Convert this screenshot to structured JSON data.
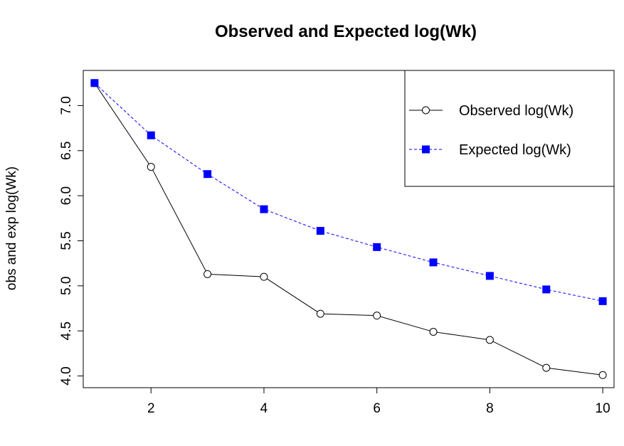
{
  "chart_data": {
    "type": "line",
    "title": "Observed and Expected log(Wk)",
    "xlabel": "",
    "ylabel": "obs and exp log(Wk)",
    "x": [
      1,
      2,
      3,
      4,
      5,
      6,
      7,
      8,
      9,
      10
    ],
    "xlim": [
      0.8,
      10.2
    ],
    "ylim": [
      3.87,
      7.39
    ],
    "xticks": [
      2,
      4,
      6,
      8,
      10
    ],
    "yticks": [
      "4.0",
      "4.5",
      "5.0",
      "5.5",
      "6.0",
      "6.5",
      "7.0"
    ],
    "grid": false,
    "legend_position": "top-right",
    "series": [
      {
        "name": "Observed log(Wk)",
        "values": [
          7.25,
          6.32,
          5.13,
          5.1,
          4.69,
          4.67,
          4.49,
          4.4,
          4.09,
          4.01
        ],
        "color": "#000000",
        "line_style": "solid",
        "marker": "open-circle"
      },
      {
        "name": "Expected log(Wk)",
        "values": [
          7.25,
          6.67,
          6.24,
          5.85,
          5.61,
          5.43,
          5.26,
          5.11,
          4.96,
          4.83
        ],
        "color": "#0000ff",
        "line_style": "dashed",
        "marker": "filled-square"
      }
    ]
  }
}
